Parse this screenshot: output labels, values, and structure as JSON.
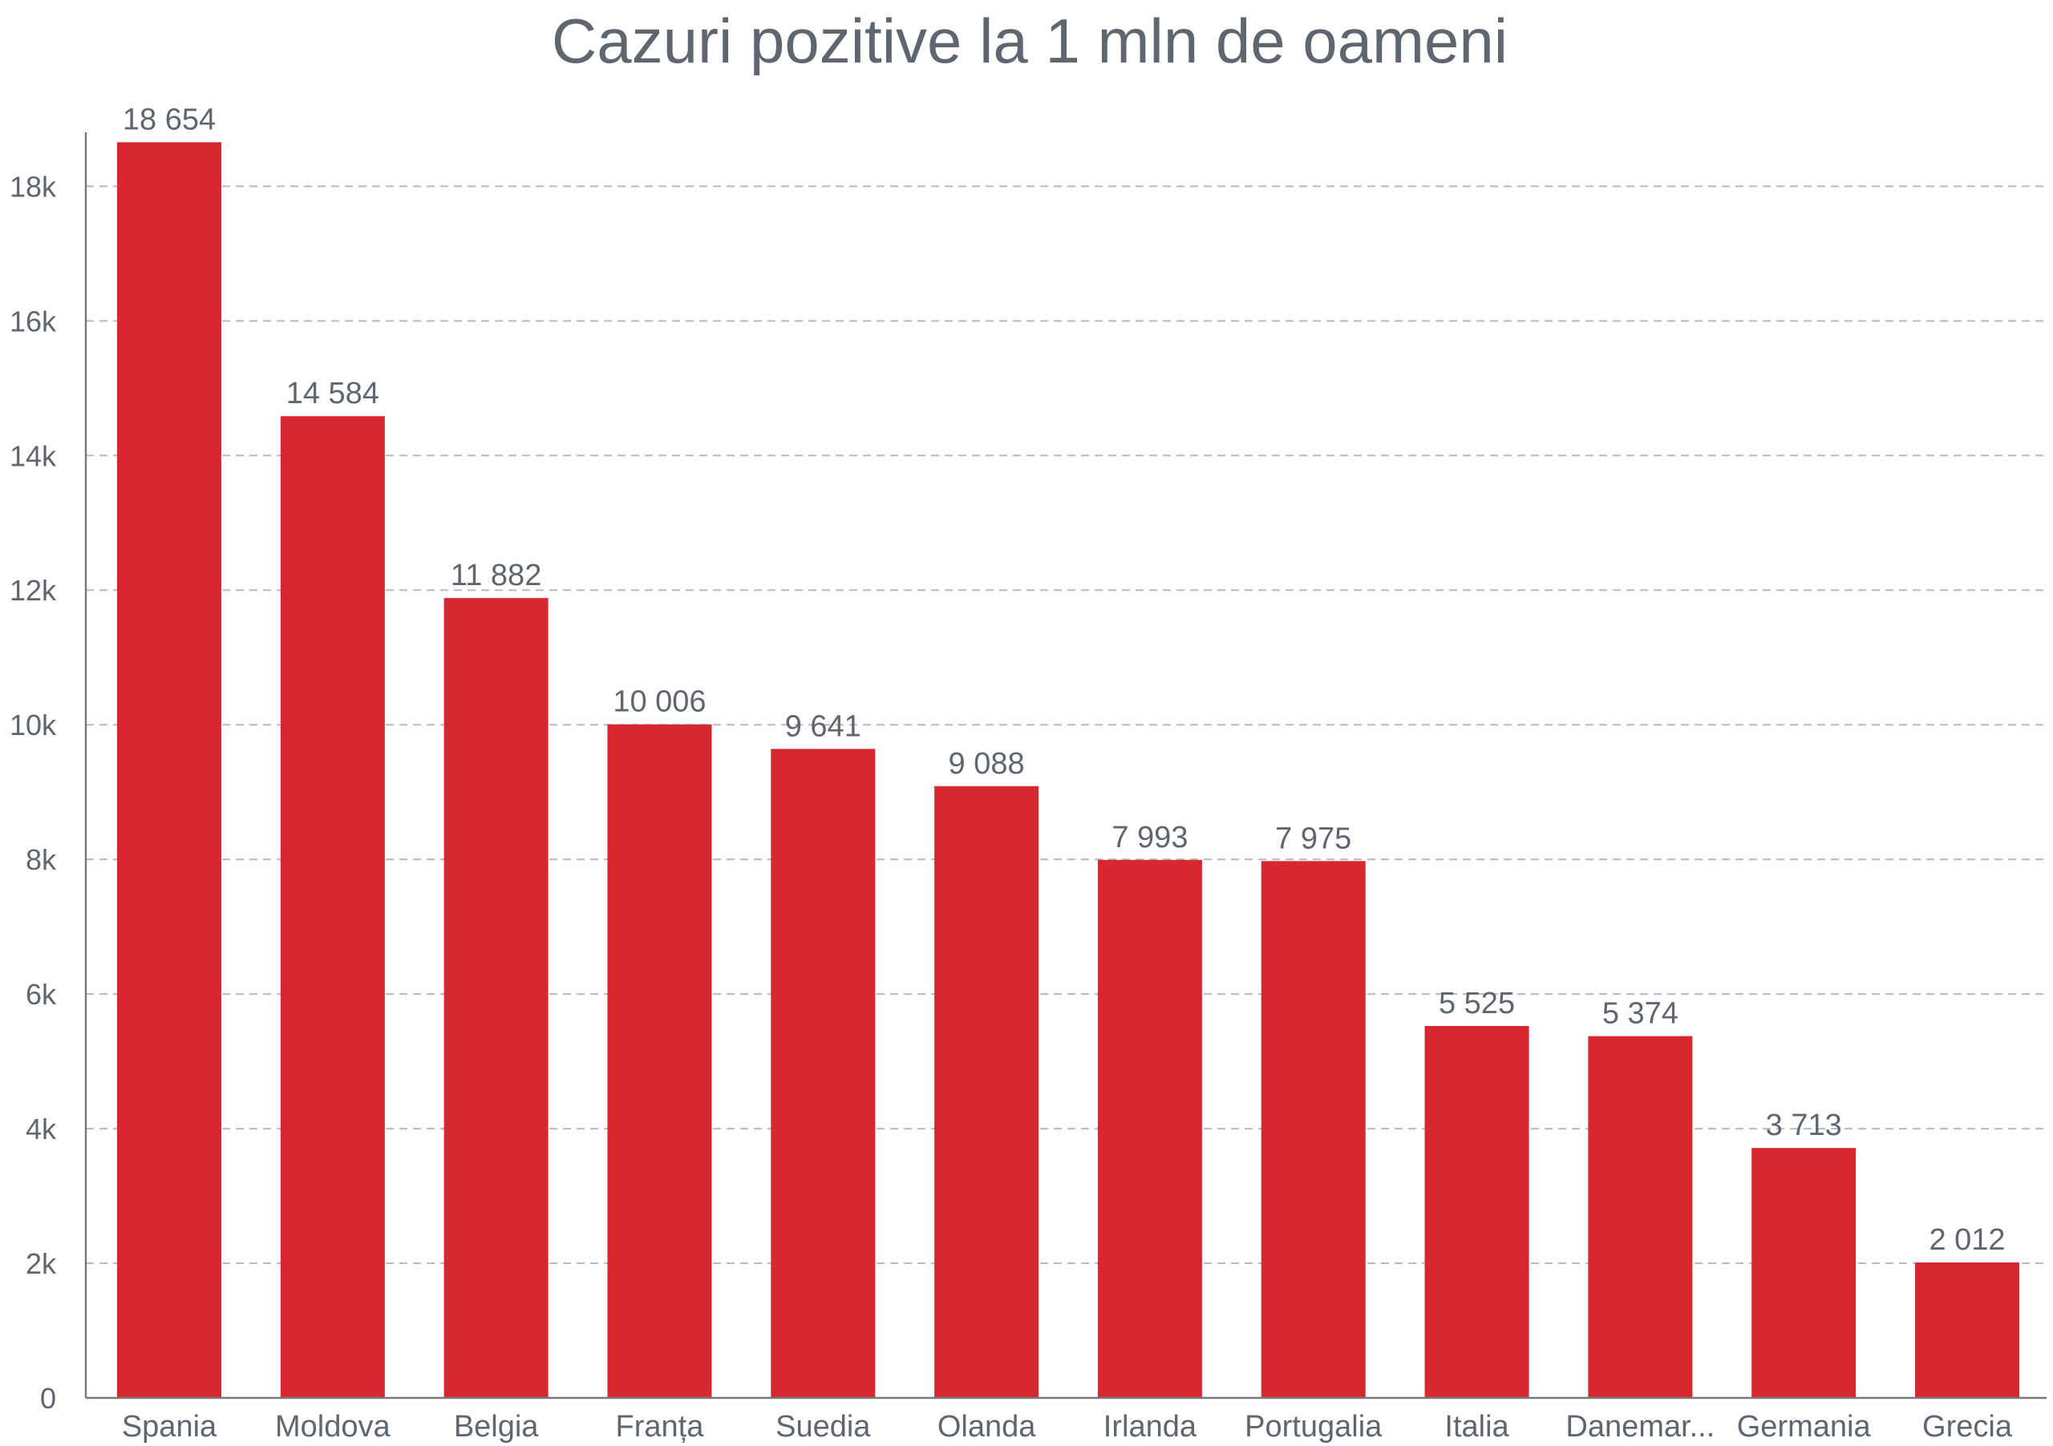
{
  "chart_data": {
    "type": "bar",
    "title": "Cazuri pozitive la 1 mln de oameni",
    "xlabel": "",
    "ylabel": "",
    "categories": [
      "Spania",
      "Moldova",
      "Belgia",
      "Franța",
      "Suedia",
      "Olanda",
      "Irlanda",
      "Portugalia",
      "Italia",
      "Danemar...",
      "Germania",
      "Grecia"
    ],
    "values": [
      18654,
      14584,
      11882,
      10006,
      9641,
      9088,
      7993,
      7975,
      5525,
      5374,
      3713,
      2012
    ],
    "value_labels": [
      "18 654",
      "14 584",
      "11 882",
      "10 006",
      "9 641",
      "9 088",
      "7 993",
      "7 975",
      "5 525",
      "5 374",
      "3 713",
      "2 012"
    ],
    "ylim": [
      0,
      19600
    ],
    "yticks": [
      0,
      2000,
      4000,
      6000,
      8000,
      10000,
      12000,
      14000,
      16000,
      18000
    ],
    "ytick_labels": [
      "0",
      "2k",
      "4k",
      "6k",
      "8k",
      "10k",
      "12k",
      "14k",
      "16k",
      "18k"
    ],
    "grid": true,
    "grid_style": "dashed",
    "legend": "none",
    "bar_color": "#d7282f"
  }
}
